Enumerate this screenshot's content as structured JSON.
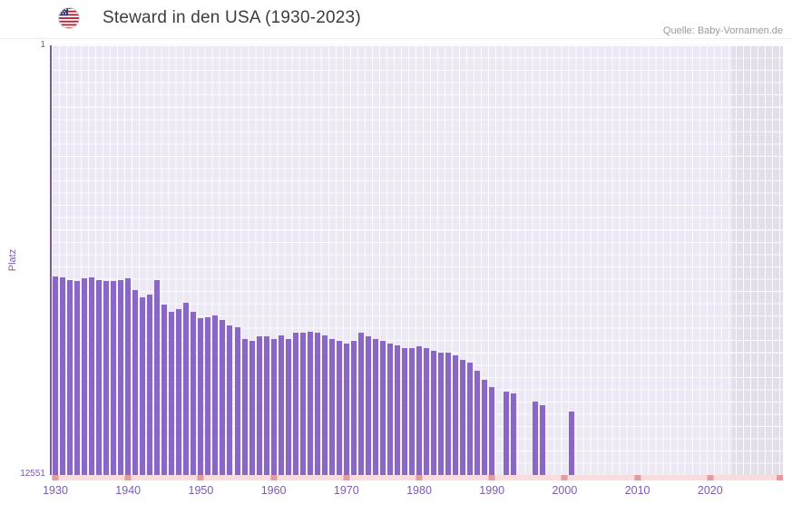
{
  "header": {
    "title": "Steward in den USA (1930-2023)",
    "source": "Quelle: Baby-Vornamen.de",
    "flag_icon": "us-flag-icon"
  },
  "chart_data": {
    "type": "bar",
    "title": "Steward in den USA (1930-2023)",
    "xlabel": "",
    "ylabel": "Platz",
    "bar_color": "#8a66c6",
    "grid": true,
    "legend": false,
    "y_axis": {
      "top_label": "1",
      "bottom_label": "12551",
      "min": 1,
      "max": 12551,
      "scale": "log",
      "inverted": true
    },
    "x_domain": [
      1929.5,
      2030
    ],
    "x_ticks": [
      1930,
      1940,
      1950,
      1960,
      1970,
      1980,
      1990,
      2000,
      2010,
      2020
    ],
    "shaded_band": {
      "from_year": 2023,
      "to_year": 2030
    },
    "start_year": 1930,
    "values": [
      160,
      165,
      172,
      178,
      168,
      165,
      172,
      178,
      178,
      172,
      168,
      214,
      251,
      237,
      175,
      300,
      351,
      330,
      288,
      351,
      403,
      390,
      375,
      420,
      473,
      490,
      637,
      664,
      600,
      600,
      637,
      580,
      637,
      554,
      554,
      545,
      554,
      580,
      637,
      664,
      703,
      664,
      554,
      600,
      637,
      664,
      703,
      730,
      777,
      777,
      750,
      777,
      820,
      858,
      858,
      900,
      1006,
      1060,
      1277,
      1559,
      1827,
      null,
      2000,
      2099,
      null,
      null,
      2500,
      2718,
      null,
      null,
      null,
      3125,
      null,
      null,
      null,
      null,
      null,
      null,
      null,
      null,
      null,
      null,
      null,
      null,
      null,
      null,
      null,
      null,
      null,
      null,
      null,
      null,
      null,
      null
    ]
  }
}
